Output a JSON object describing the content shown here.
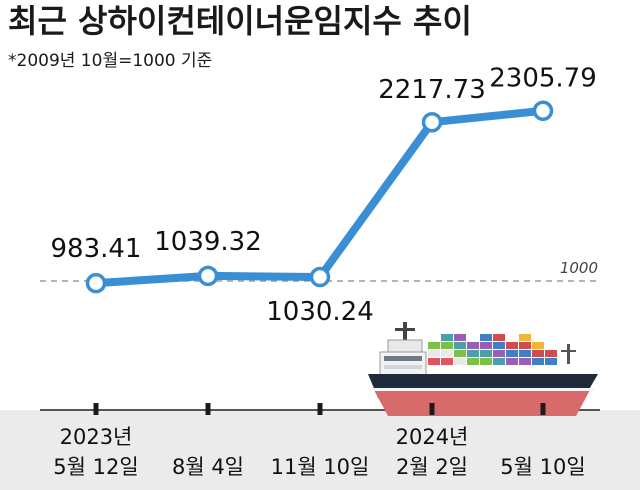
{
  "title": "최근 상하이컨테이너운임지수 추이",
  "subtitle": "*2009년 10월=1000 기준",
  "colors": {
    "line": "#3a8fd4",
    "reference": "#9a9a9a",
    "axis_band": "#ebebeb"
  },
  "chart_data": {
    "type": "line",
    "title": "최근 상하이컨테이너운임지수 추이",
    "categories": [
      [
        "2023년",
        "5월 12일"
      ],
      [
        "",
        "8월 4일"
      ],
      [
        "",
        "11월 10일"
      ],
      [
        "2024년",
        "2월 2일"
      ],
      [
        "",
        "5월 10일"
      ]
    ],
    "values": [
      983.41,
      1039.32,
      1030.24,
      2217.73,
      2305.79
    ],
    "value_labels": [
      "983.41",
      "1039.32",
      "1030.24",
      "2217.73",
      "2305.79"
    ],
    "reference_line": {
      "value": 1000,
      "label": "1000"
    },
    "ylim": [
      0,
      2500
    ],
    "grid": false,
    "xlabel": "",
    "ylabel": ""
  }
}
